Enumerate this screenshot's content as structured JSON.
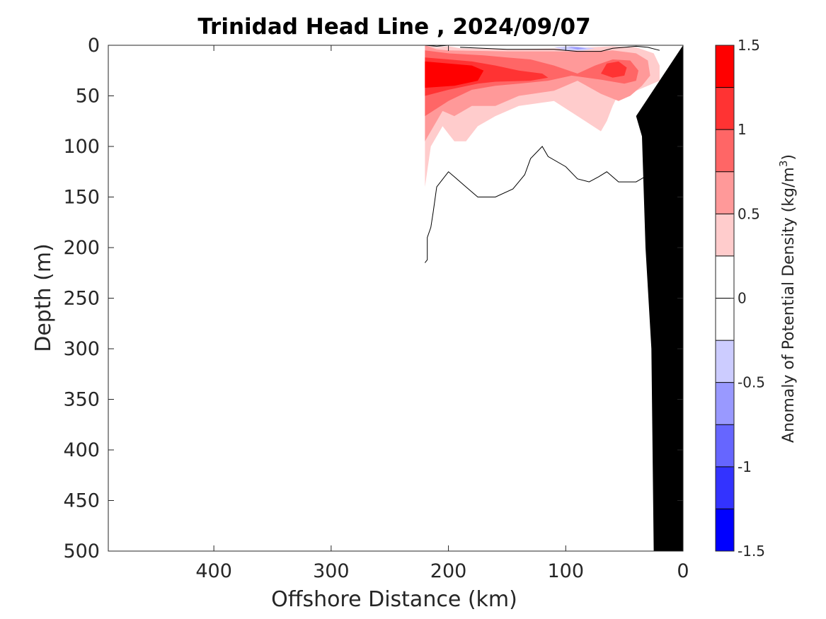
{
  "chart_data": {
    "type": "heatmap",
    "title": "Trinidad Head Line , 2024/09/07",
    "xlabel": "Offshore Distance (km)",
    "ylabel": "Depth (m)",
    "x_reversed": true,
    "y_reversed": true,
    "xlim": [
      490,
      0
    ],
    "ylim": [
      0,
      500
    ],
    "xticks": [
      "400",
      "300",
      "200",
      "100",
      "0"
    ],
    "xtick_values": [
      400,
      300,
      200,
      100,
      0
    ],
    "yticks": [
      "0",
      "50",
      "100",
      "150",
      "200",
      "250",
      "300",
      "350",
      "400",
      "450",
      "500"
    ],
    "ytick_values": [
      0,
      50,
      100,
      150,
      200,
      250,
      300,
      350,
      400,
      450,
      500
    ],
    "colorbar": {
      "title": "Anomaly of Potential Density (kg/m",
      "title_sup": "3",
      "title_end": ")",
      "range": [
        -1.5,
        1.5
      ],
      "tick_labels": [
        "1.5",
        "1",
        "0.5",
        "0",
        "-0.5",
        "-1",
        "-1.5"
      ],
      "tick_values": [
        1.5,
        1,
        0.5,
        0,
        -0.5,
        -1,
        -1.5
      ],
      "bands": [
        {
          "from": 1.25,
          "to": 1.5,
          "color": "#ff0000"
        },
        {
          "from": 1.0,
          "to": 1.25,
          "color": "#ff3333"
        },
        {
          "from": 0.75,
          "to": 1.0,
          "color": "#ff6666"
        },
        {
          "from": 0.5,
          "to": 0.75,
          "color": "#ff9999"
        },
        {
          "from": 0.25,
          "to": 0.5,
          "color": "#ffcccc"
        },
        {
          "from": 0.0,
          "to": 0.25,
          "color": "#ffffff"
        },
        {
          "from": -0.25,
          "to": 0.0,
          "color": "#ffffff"
        },
        {
          "from": -0.5,
          "to": -0.25,
          "color": "#ccccff"
        },
        {
          "from": -0.75,
          "to": -0.5,
          "color": "#9999ff"
        },
        {
          "from": -1.0,
          "to": -0.75,
          "color": "#6666ff"
        },
        {
          "from": -1.25,
          "to": -1.0,
          "color": "#3333ff"
        },
        {
          "from": -1.5,
          "to": -1.25,
          "color": "#0000ff"
        }
      ]
    },
    "filled_regions": [
      {
        "level": 0.25,
        "color": "#ffcccc",
        "points": [
          [
            220,
            0
          ],
          [
            210,
            2
          ],
          [
            200,
            1
          ],
          [
            190,
            3
          ],
          [
            150,
            4
          ],
          [
            100,
            3
          ],
          [
            80,
            2
          ],
          [
            60,
            1
          ],
          [
            40,
            2
          ],
          [
            25,
            8
          ],
          [
            20,
            20
          ],
          [
            20,
            35
          ],
          [
            40,
            45
          ],
          [
            55,
            48
          ],
          [
            60,
            60
          ],
          [
            65,
            75
          ],
          [
            70,
            85
          ],
          [
            90,
            70
          ],
          [
            110,
            55
          ],
          [
            140,
            60
          ],
          [
            160,
            70
          ],
          [
            175,
            80
          ],
          [
            185,
            95
          ],
          [
            195,
            95
          ],
          [
            205,
            80
          ],
          [
            215,
            100
          ],
          [
            220,
            140
          ]
        ]
      },
      {
        "level": 0.5,
        "color": "#ff9999",
        "points": [
          [
            220,
            0
          ],
          [
            210,
            4
          ],
          [
            200,
            5
          ],
          [
            150,
            6
          ],
          [
            100,
            6
          ],
          [
            80,
            6
          ],
          [
            60,
            5
          ],
          [
            40,
            8
          ],
          [
            30,
            15
          ],
          [
            28,
            30
          ],
          [
            35,
            40
          ],
          [
            45,
            50
          ],
          [
            55,
            55
          ],
          [
            70,
            48
          ],
          [
            90,
            35
          ],
          [
            110,
            45
          ],
          [
            140,
            50
          ],
          [
            160,
            60
          ],
          [
            180,
            60
          ],
          [
            195,
            70
          ],
          [
            205,
            65
          ],
          [
            220,
            95
          ]
        ]
      },
      {
        "level": 0.75,
        "color": "#ff6666",
        "points": [
          [
            220,
            5
          ],
          [
            200,
            8
          ],
          [
            170,
            10
          ],
          [
            150,
            12
          ],
          [
            130,
            14
          ],
          [
            110,
            20
          ],
          [
            90,
            28
          ],
          [
            75,
            20
          ],
          [
            60,
            14
          ],
          [
            45,
            15
          ],
          [
            38,
            25
          ],
          [
            40,
            35
          ],
          [
            50,
            38
          ],
          [
            70,
            34
          ],
          [
            95,
            30
          ],
          [
            115,
            35
          ],
          [
            140,
            38
          ],
          [
            160,
            40
          ],
          [
            180,
            44
          ],
          [
            200,
            55
          ],
          [
            220,
            70
          ]
        ]
      },
      {
        "level": 1.0,
        "color": "#ff3333",
        "points": [
          [
            220,
            12
          ],
          [
            200,
            14
          ],
          [
            180,
            16
          ],
          [
            160,
            20
          ],
          [
            140,
            25
          ],
          [
            120,
            28
          ],
          [
            115,
            32
          ],
          [
            130,
            35
          ],
          [
            160,
            36
          ],
          [
            175,
            38
          ],
          [
            200,
            44
          ],
          [
            220,
            50
          ]
        ]
      },
      {
        "level": 1.0,
        "color": "#ff3333",
        "points": [
          [
            65,
            18
          ],
          [
            55,
            16
          ],
          [
            48,
            22
          ],
          [
            50,
            30
          ],
          [
            60,
            32
          ],
          [
            70,
            28
          ]
        ]
      },
      {
        "level": 1.25,
        "color": "#ff0000",
        "points": [
          [
            220,
            16
          ],
          [
            200,
            18
          ],
          [
            180,
            20
          ],
          [
            170,
            25
          ],
          [
            175,
            35
          ],
          [
            195,
            40
          ],
          [
            220,
            42
          ]
        ]
      },
      {
        "level": -0.5,
        "color": "#ccccff",
        "points": [
          [
            110,
            2
          ],
          [
            95,
            1
          ],
          [
            85,
            2
          ],
          [
            75,
            3
          ],
          [
            85,
            5
          ],
          [
            100,
            5
          ]
        ]
      },
      {
        "level": -0.75,
        "color": "#9999ff",
        "points": [
          [
            98,
            2
          ],
          [
            90,
            2
          ],
          [
            82,
            3
          ],
          [
            90,
            4
          ]
        ]
      }
    ],
    "contour_lines": [
      {
        "level": 0,
        "points": [
          [
            220,
            0
          ],
          [
            210,
            1
          ],
          [
            200,
            0
          ]
        ]
      },
      {
        "level": 0,
        "points": [
          [
            190,
            2
          ],
          [
            150,
            4
          ],
          [
            110,
            4
          ],
          [
            90,
            6
          ],
          [
            70,
            6
          ],
          [
            60,
            3
          ],
          [
            50,
            2
          ],
          [
            40,
            1
          ],
          [
            30,
            2
          ],
          [
            20,
            5
          ]
        ]
      },
      {
        "level": 0,
        "points": [
          [
            220,
            215
          ],
          [
            218,
            212
          ],
          [
            218,
            190
          ],
          [
            215,
            180
          ],
          [
            213,
            165
          ],
          [
            210,
            140
          ],
          [
            200,
            125
          ],
          [
            195,
            130
          ],
          [
            185,
            140
          ],
          [
            175,
            150
          ],
          [
            160,
            150
          ],
          [
            145,
            142
          ],
          [
            135,
            128
          ],
          [
            130,
            112
          ],
          [
            120,
            100
          ],
          [
            115,
            110
          ],
          [
            100,
            120
          ],
          [
            90,
            132
          ],
          [
            80,
            135
          ],
          [
            72,
            130
          ],
          [
            65,
            125
          ],
          [
            55,
            135
          ],
          [
            40,
            135
          ],
          [
            25,
            125
          ],
          [
            20,
            100
          ],
          [
            15,
            80
          ],
          [
            10,
            75
          ],
          [
            5,
            75
          ],
          [
            0,
            74
          ]
        ]
      }
    ],
    "seafloor": [
      [
        0,
        0
      ],
      [
        0,
        500
      ],
      [
        25,
        500
      ],
      [
        27,
        300
      ],
      [
        32,
        200
      ],
      [
        35,
        90
      ],
      [
        40,
        70
      ],
      [
        0,
        0
      ]
    ]
  }
}
